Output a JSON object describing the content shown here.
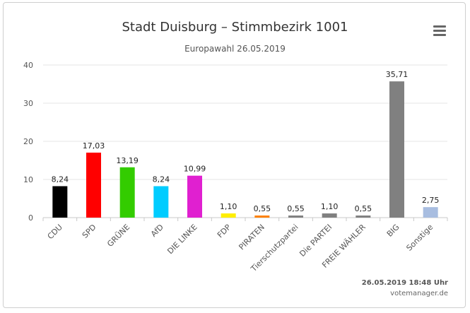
{
  "chart_data": {
    "type": "bar",
    "title": "Stadt Duisburg – Stimmbezirk 1001",
    "subtitle": "Europawahl 26.05.2019",
    "categories": [
      "CDU",
      "SPD",
      "GRÜNE",
      "AfD",
      "DIE LINKE",
      "FDP",
      "PIRATEN",
      "Tierschutzpartei",
      "Die PARTEI",
      "FREIE WÄHLER",
      "BIG",
      "Sonstige"
    ],
    "values": [
      8.24,
      17.03,
      13.19,
      8.24,
      10.99,
      1.1,
      0.55,
      0.55,
      1.1,
      0.55,
      35.71,
      2.75
    ],
    "value_labels": [
      "8,24",
      "17,03",
      "13,19",
      "8,24",
      "10,99",
      "1,10",
      "0,55",
      "0,55",
      "1,10",
      "0,55",
      "35,71",
      "2,75"
    ],
    "colors": [
      "#000000",
      "#ff0000",
      "#33cc00",
      "#00ccff",
      "#e020d0",
      "#ffee00",
      "#ff8000",
      "#808080",
      "#808080",
      "#808080",
      "#808080",
      "#a8bde0"
    ],
    "ylim": [
      0,
      40
    ],
    "yticks": [
      0,
      10,
      20,
      30,
      40
    ],
    "grid": true,
    "xlabel": "",
    "ylabel": ""
  },
  "footer": {
    "timestamp": "26.05.2019 18:48 Uhr",
    "credit": "votemanager.de"
  },
  "icons": {
    "menu": "hamburger-menu-icon"
  }
}
